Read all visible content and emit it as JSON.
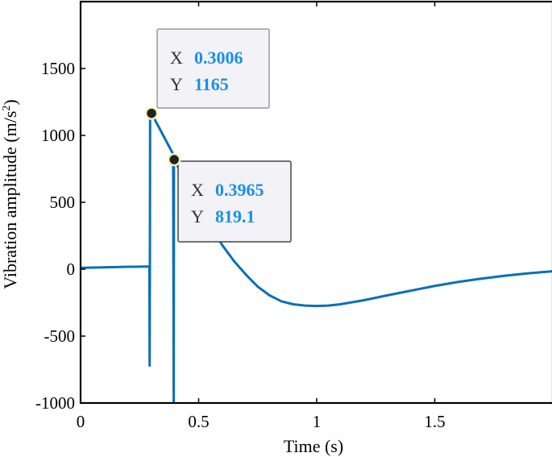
{
  "chart_data": {
    "type": "line",
    "title": "",
    "xlabel": "Time (s)",
    "ylabel": "Vibration amplitude (m/s",
    "ylabel_sup": "2",
    "ylabel_close": ")",
    "xlim": [
      0,
      2
    ],
    "ylim": [
      -1000,
      2000
    ],
    "xticks": [
      0,
      0.5,
      1,
      1.5
    ],
    "xtick_labels": [
      "0",
      "0.5",
      "1",
      "1.5"
    ],
    "yticks": [
      -1000,
      -500,
      0,
      500,
      1000,
      1500
    ],
    "ytick_labels": [
      "-1000",
      "-500",
      "0",
      "500",
      "1000",
      "1500"
    ],
    "grid": false,
    "series": [
      {
        "color": "#0b6fb8",
        "x": [
          0,
          0.05,
          0.1,
          0.15,
          0.2,
          0.25,
          0.29,
          0.2915,
          0.2925,
          0.2935,
          0.2945,
          0.3006,
          0.32,
          0.35,
          0.38,
          0.392,
          0.3945,
          0.3955,
          0.3965,
          0.42,
          0.45,
          0.5,
          0.55,
          0.6,
          0.65,
          0.7,
          0.75,
          0.8,
          0.85,
          0.9,
          0.95,
          1.0,
          1.05,
          1.1,
          1.2,
          1.3,
          1.4,
          1.5,
          1.6,
          1.7,
          1.8,
          1.9,
          2.0
        ],
        "y": [
          10,
          12,
          14,
          16,
          18,
          19,
          20,
          20,
          -720,
          20,
          1150,
          1165,
          1100,
          1000,
          900,
          860,
          -1000,
          850,
          819.1,
          740,
          640,
          480,
          320,
          180,
          60,
          -40,
          -130,
          -195,
          -240,
          -262,
          -272,
          -275,
          -272,
          -262,
          -232,
          -195,
          -160,
          -125,
          -95,
          -70,
          -48,
          -30,
          -15
        ]
      }
    ],
    "datatips": [
      {
        "x_key": "X",
        "x_value": "0.3006",
        "y_key": "Y",
        "y_value": "1165",
        "point_x": 0.3006,
        "point_y": 1165
      },
      {
        "x_key": "X",
        "x_value": "0.3965",
        "y_key": "Y",
        "y_value": "819.1",
        "point_x": 0.3965,
        "point_y": 819.1
      }
    ],
    "datatip_value_color": "#1a8fe6"
  }
}
